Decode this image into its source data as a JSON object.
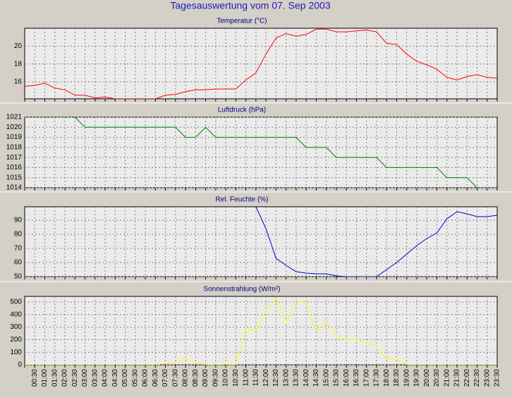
{
  "title": "Tagesauswertung vom 07. Sep 2003",
  "categories": [
    null,
    "00:30",
    "01:00",
    "01:30",
    "02:00",
    "02:30",
    "03:00",
    "03:30",
    "04:00",
    "04:30",
    "05:00",
    "05:30",
    "06:00",
    "06:30",
    "07:00",
    "07:30",
    "08:00",
    "08:30",
    "09:00",
    "09:30",
    "10:00",
    "10:30",
    "11:00",
    "11:30",
    "12:00",
    "12:30",
    "13:00",
    "13:30",
    "14:00",
    "14:30",
    "15:00",
    "15:30",
    "16:00",
    "16:30",
    "17:00",
    "17:30",
    "18:00",
    "18:30",
    "19:00",
    "19:30",
    "20:00",
    "20:30",
    "21:00",
    "21:30",
    "22:00",
    "22:30",
    "23:00",
    "23:30"
  ],
  "chart_data": [
    {
      "type": "line",
      "title": "Temperatur (°C)",
      "color": "#ff0000",
      "grid": true,
      "ylim": [
        14.1,
        22
      ],
      "yticks": [
        16,
        18,
        20
      ],
      "values": [
        15.5,
        15.6,
        15.85,
        15.3,
        15.1,
        14.5,
        14.5,
        14.2,
        14.3,
        14.1,
        14.1,
        14.1,
        14.1,
        14.1,
        14.5,
        14.6,
        14.9,
        15.1,
        15.1,
        15.2,
        15.2,
        15.2,
        16.2,
        17.0,
        19.1,
        20.9,
        21.4,
        21.1,
        21.3,
        21.9,
        21.9,
        21.6,
        21.6,
        21.7,
        21.8,
        21.6,
        20.3,
        20.2,
        19.1,
        18.3,
        17.9,
        17.4,
        16.5,
        16.2,
        16.6,
        16.8,
        16.5,
        16.4
      ]
    },
    {
      "type": "line",
      "title": "Luftdruck (hPa)",
      "color": "#008000",
      "grid": true,
      "ylim": [
        1014,
        1021
      ],
      "yticks": [
        1014,
        1015,
        1016,
        1017,
        1018,
        1019,
        1020,
        1021
      ],
      "values": [
        null,
        null,
        null,
        null,
        null,
        1021,
        1020,
        1020,
        1020,
        1020,
        1020,
        1020,
        1020,
        1020,
        1020,
        1020,
        1019,
        1019,
        1020,
        1019,
        1019,
        1019,
        1019,
        1019,
        1019,
        1019,
        1019,
        1019,
        1018,
        1018,
        1018,
        1017,
        1017,
        1017,
        1017,
        1017,
        1016,
        1016,
        1016,
        1016,
        1016,
        1016,
        1015,
        1015,
        1015,
        1014,
        null,
        null
      ]
    },
    {
      "type": "line",
      "title": "Rel. Feuchte (%)",
      "color": "#0000c0",
      "grid": true,
      "ylim": [
        50,
        99.5
      ],
      "yticks": [
        50,
        60,
        70,
        80,
        90
      ],
      "values": [
        null,
        null,
        null,
        null,
        null,
        null,
        null,
        null,
        null,
        null,
        null,
        null,
        null,
        null,
        null,
        null,
        null,
        null,
        null,
        null,
        null,
        null,
        null,
        99.5,
        84,
        63,
        58,
        53.5,
        52.5,
        52,
        52,
        50.5,
        50,
        50,
        50,
        50,
        55,
        60,
        66,
        72,
        77,
        81,
        91,
        96,
        94.5,
        92.5,
        92.5,
        93.5
      ]
    },
    {
      "type": "line",
      "title": "Sonnenstrahlung (W/m²)",
      "color": "#ffff00",
      "grid": true,
      "ylim": [
        0,
        545
      ],
      "yticks": [
        0,
        100,
        200,
        300,
        400,
        500
      ],
      "values": [
        0,
        0,
        0,
        0,
        0,
        0,
        0,
        0,
        0,
        0,
        0,
        0,
        0,
        0,
        10,
        20,
        50,
        20,
        0,
        0,
        5,
        0,
        290,
        270,
        430,
        530,
        340,
        510,
        490,
        270,
        340,
        230,
        200,
        200,
        170,
        150,
        50,
        45,
        0,
        0,
        0,
        0,
        0,
        0,
        0,
        0,
        0,
        0
      ]
    }
  ]
}
